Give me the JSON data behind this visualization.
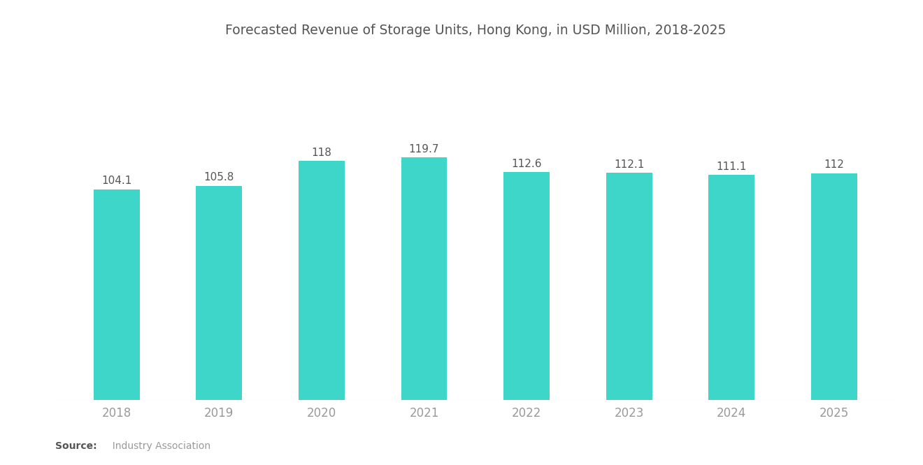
{
  "title": "Forecasted Revenue of Storage Units, Hong Kong, in USD Million, 2018-2025",
  "categories": [
    "2018",
    "2019",
    "2020",
    "2021",
    "2022",
    "2023",
    "2024",
    "2025"
  ],
  "values": [
    104.1,
    105.8,
    118,
    119.7,
    112.6,
    112.1,
    111.1,
    112
  ],
  "bar_color": "#3DD6C8",
  "background_color": "#ffffff",
  "title_color": "#555555",
  "label_color": "#555555",
  "tick_color": "#999999",
  "source_bold": "Source:",
  "source_text": "  Industry Association",
  "title_fontsize": 13.5,
  "label_fontsize": 11,
  "tick_fontsize": 12,
  "ylim": [
    0,
    170
  ],
  "bar_width": 0.45
}
